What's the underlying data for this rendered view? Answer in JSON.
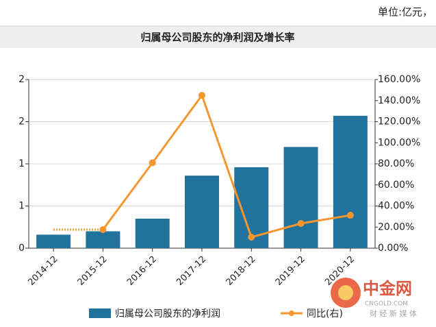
{
  "header": {
    "unit": "单位:亿元，"
  },
  "watermark": {
    "name": "中金网",
    "site": "CNGOLD.COM",
    "slogan": "财 经 新 媒 体"
  },
  "chart_data": {
    "type": "bar_line",
    "title": "归属母公司股东的净利润及增长率",
    "categories": [
      "2014-12",
      "2015-12",
      "2016-12",
      "2017-12",
      "2018-12",
      "2019-12",
      "2020-12"
    ],
    "series": [
      {
        "name": "归属母公司股东的净利润",
        "color": "#21729c",
        "type": "bar",
        "values": [
          0.16,
          0.2,
          0.35,
          0.86,
          0.96,
          1.2,
          1.57
        ]
      },
      {
        "name": "同比(右)",
        "color": "#f5962f",
        "type": "line",
        "axis": "y2",
        "values": [
          null,
          17.6,
          81,
          145,
          10.4,
          23.4,
          31.2
        ]
      }
    ],
    "ylim": [
      0,
      2
    ],
    "yticks": [
      {
        "value": 0,
        "label": "0"
      },
      {
        "value": 0.5,
        "label": "1"
      },
      {
        "value": 1,
        "label": "1"
      },
      {
        "value": 1.5,
        "label": "2"
      },
      {
        "value": 2,
        "label": "2"
      }
    ],
    "y2lim": [
      0,
      160
    ],
    "y2ticks": [
      {
        "value": 0,
        "label": "0.00%"
      },
      {
        "value": 20,
        "label": "20.00%"
      },
      {
        "value": 40,
        "label": "40.00%"
      },
      {
        "value": 60,
        "label": "60.00%"
      },
      {
        "value": 80,
        "label": "80.00%"
      },
      {
        "value": 100,
        "label": "100.00%"
      },
      {
        "value": 120,
        "label": "120.00%"
      },
      {
        "value": 140,
        "label": "140.00%"
      },
      {
        "value": 160,
        "label": "160.00%"
      }
    ]
  }
}
